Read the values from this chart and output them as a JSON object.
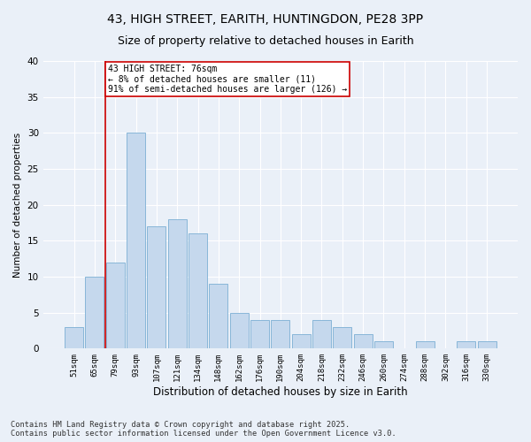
{
  "title": "43, HIGH STREET, EARITH, HUNTINGDON, PE28 3PP",
  "subtitle": "Size of property relative to detached houses in Earith",
  "xlabel": "Distribution of detached houses by size in Earith",
  "ylabel": "Number of detached properties",
  "categories": [
    "51sqm",
    "65sqm",
    "79sqm",
    "93sqm",
    "107sqm",
    "121sqm",
    "134sqm",
    "148sqm",
    "162sqm",
    "176sqm",
    "190sqm",
    "204sqm",
    "218sqm",
    "232sqm",
    "246sqm",
    "260sqm",
    "274sqm",
    "288sqm",
    "302sqm",
    "316sqm",
    "330sqm"
  ],
  "values": [
    3,
    10,
    12,
    30,
    17,
    18,
    16,
    9,
    5,
    4,
    4,
    2,
    4,
    3,
    2,
    1,
    0,
    1,
    0,
    1,
    1
  ],
  "bar_color": "#c5d8ed",
  "bar_edge_color": "#7bafd4",
  "vline_x_index": 1.5,
  "vline_color": "#cc0000",
  "annotation_text": "43 HIGH STREET: 76sqm\n← 8% of detached houses are smaller (11)\n91% of semi-detached houses are larger (126) →",
  "annotation_box_color": "#cc0000",
  "ylim": [
    0,
    40
  ],
  "yticks": [
    0,
    5,
    10,
    15,
    20,
    25,
    30,
    35,
    40
  ],
  "bg_color": "#eaf0f8",
  "footer": "Contains HM Land Registry data © Crown copyright and database right 2025.\nContains public sector information licensed under the Open Government Licence v3.0.",
  "title_fontsize": 10,
  "subtitle_fontsize": 9,
  "bar_width": 0.9
}
